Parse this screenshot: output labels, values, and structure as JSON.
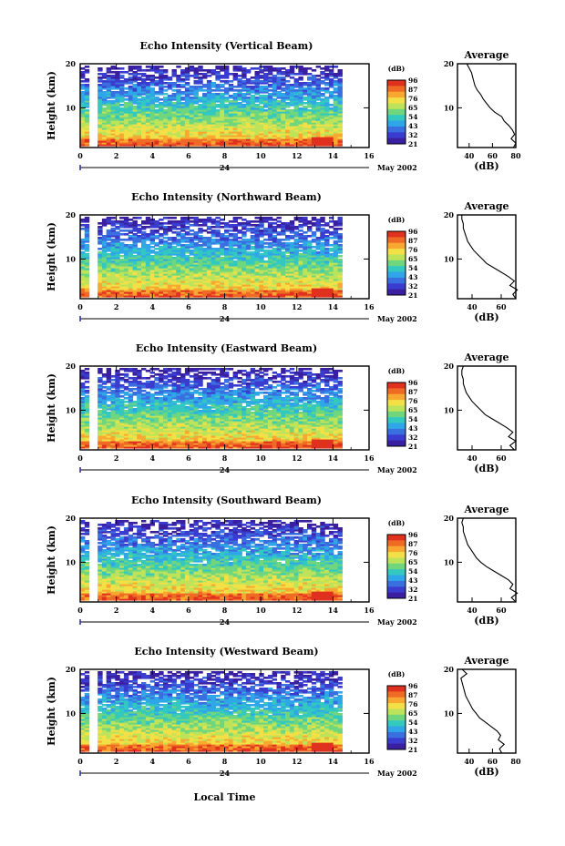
{
  "x_axis_label": "Local Time",
  "date_day": "24",
  "date_month_year": "May 2002",
  "y_axis_label": "Height (km)",
  "colorbar_unit": "(dB)",
  "colorbar_ticks": [
    "96",
    "87",
    "76",
    "65",
    "54",
    "43",
    "32",
    "21"
  ],
  "colorbar_colors": [
    "#e0301e",
    "#ef6a24",
    "#f8a830",
    "#f2e046",
    "#bde35a",
    "#6fd67e",
    "#33c8c0",
    "#2fa6e8",
    "#3a6fe0",
    "#3a3ccf",
    "#3a1fa0"
  ],
  "x_ticks": [
    "0",
    "2",
    "4",
    "6",
    "8",
    "10",
    "12",
    "14",
    "16"
  ],
  "y_ticks": [
    "20",
    "10"
  ],
  "profile_title": "Average",
  "profile_unit": "(dB)",
  "chart_data": [
    {
      "type": "heatmap",
      "title": "Echo Intensity (Vertical Beam)",
      "xlabel": "",
      "ylabel": "Height (km)",
      "xlim": [
        0,
        16
      ],
      "ylim": [
        1,
        20
      ],
      "profile": {
        "xlim": [
          30,
          80
        ],
        "x_ticks": [
          "40",
          "60",
          "80"
        ],
        "y_ticks": [
          "20",
          "10"
        ],
        "heights": [
          1,
          2,
          3,
          4,
          5,
          6,
          7,
          8,
          9,
          10,
          11,
          12,
          13,
          14,
          15,
          16,
          17,
          18,
          19,
          20
        ],
        "values": [
          78,
          80,
          76,
          79,
          77,
          74,
          70,
          68,
          62,
          58,
          55,
          52,
          50,
          47,
          45,
          44,
          43,
          42,
          40,
          38
        ]
      }
    },
    {
      "type": "heatmap",
      "title": "Echo Intensity (Northward Beam)",
      "xlabel": "",
      "ylabel": "Height (km)",
      "xlim": [
        0,
        16
      ],
      "ylim": [
        1,
        20
      ],
      "profile": {
        "xlim": [
          30,
          70
        ],
        "x_ticks": [
          "40",
          "60"
        ],
        "y_ticks": [
          "20",
          "10"
        ],
        "heights": [
          1,
          2,
          3,
          4,
          5,
          6,
          7,
          8,
          9,
          10,
          11,
          12,
          13,
          14,
          15,
          16,
          17,
          18,
          19,
          20
        ],
        "values": [
          70,
          68,
          71,
          66,
          69,
          65,
          60,
          55,
          50,
          47,
          44,
          41,
          39,
          37,
          36,
          35,
          34,
          34,
          33,
          33
        ]
      }
    },
    {
      "type": "heatmap",
      "title": "Echo Intensity (Eastward Beam)",
      "xlabel": "",
      "ylabel": "Height (km)",
      "xlim": [
        0,
        16
      ],
      "ylim": [
        1,
        20
      ],
      "profile": {
        "xlim": [
          30,
          70
        ],
        "x_ticks": [
          "40",
          "60"
        ],
        "y_ticks": [
          "20",
          "10"
        ],
        "heights": [
          1,
          2,
          3,
          4,
          5,
          6,
          7,
          8,
          9,
          10,
          11,
          12,
          13,
          14,
          15,
          16,
          17,
          18,
          19,
          20
        ],
        "values": [
          69,
          66,
          70,
          65,
          68,
          64,
          59,
          54,
          49,
          46,
          43,
          40,
          38,
          36,
          35,
          34,
          34,
          33,
          33,
          34
        ]
      }
    },
    {
      "type": "heatmap",
      "title": "Echo Intensity (Southward Beam)",
      "xlabel": "",
      "ylabel": "Height (km)",
      "xlim": [
        0,
        16
      ],
      "ylim": [
        1,
        20
      ],
      "profile": {
        "xlim": [
          30,
          70
        ],
        "x_ticks": [
          "40",
          "60"
        ],
        "y_ticks": [
          "20",
          "10"
        ],
        "heights": [
          1,
          2,
          3,
          4,
          5,
          6,
          7,
          8,
          9,
          10,
          11,
          12,
          13,
          14,
          15,
          16,
          17,
          18,
          19,
          20
        ],
        "values": [
          70,
          67,
          71,
          66,
          68,
          65,
          60,
          55,
          50,
          46,
          43,
          41,
          39,
          37,
          36,
          35,
          34,
          34,
          33,
          34
        ]
      }
    },
    {
      "type": "heatmap",
      "title": "Echo Intensity (Westward Beam)",
      "xlabel": "",
      "ylabel": "Height (km)",
      "xlim": [
        0,
        16
      ],
      "ylim": [
        1,
        20
      ],
      "profile": {
        "xlim": [
          30,
          80
        ],
        "x_ticks": [
          "40",
          "60",
          "80"
        ],
        "y_ticks": [
          "20",
          "10"
        ],
        "heights": [
          1,
          2,
          3,
          4,
          5,
          6,
          7,
          8,
          9,
          10,
          11,
          12,
          13,
          14,
          15,
          16,
          17,
          18,
          19,
          20
        ],
        "values": [
          68,
          66,
          70,
          65,
          67,
          64,
          59,
          54,
          49,
          46,
          43,
          41,
          39,
          37,
          36,
          35,
          34,
          33,
          38,
          34
        ]
      }
    }
  ]
}
